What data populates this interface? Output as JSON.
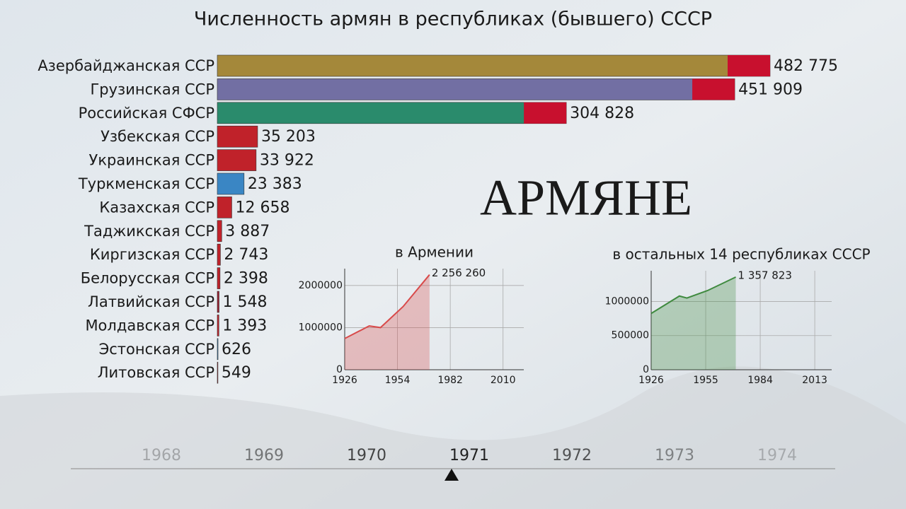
{
  "heading": "АРМЯНЕ",
  "timeline": {
    "years": [
      1968,
      1969,
      1970,
      1971,
      1972,
      1973,
      1974
    ]
  },
  "chart_data": [
    {
      "type": "bar",
      "orientation": "horizontal",
      "title": "Численность армян в республиках (бывшего) СССР",
      "categories": [
        "Азербайджанская ССР",
        "Грузинская ССР",
        "Российская СФСР",
        "Узбекская ССР",
        "Украинская ССР",
        "Туркменская ССР",
        "Казахская ССР",
        "Таджикская ССР",
        "Киргизская ССР",
        "Белорусская ССР",
        "Латвийская ССР",
        "Молдавская ССР",
        "Эстонская ССР",
        "Литовская ССР"
      ],
      "values": [
        482775,
        451909,
        304828,
        35203,
        33922,
        23383,
        12658,
        3887,
        2743,
        2398,
        1548,
        1393,
        626,
        549
      ],
      "value_labels": [
        "482 775",
        "451 909",
        "304 828",
        "35 203",
        "33 922",
        "23 383",
        "12 658",
        "3 887",
        "2 743",
        "2 398",
        "1 548",
        "1 393",
        "626",
        "549"
      ],
      "colors": [
        "#a4883a",
        "#726fa3",
        "#2a8b6c",
        "#c0222a",
        "#c0222a",
        "#3a86c4",
        "#c0222a",
        "#c0222a",
        "#c0222a",
        "#c0222a",
        "#9a2030",
        "#c0222a",
        "#3a86c4",
        "#c0222a"
      ]
    },
    {
      "type": "line",
      "title": "в Армении",
      "color": "#d84a4a",
      "x": [
        1926,
        1939,
        1945,
        1957,
        1971
      ],
      "values": [
        740000,
        1040000,
        1000000,
        1500000,
        2256260
      ],
      "value_labels": [
        null,
        null,
        null,
        null,
        "2 256 260"
      ],
      "xlim": [
        1926,
        2021
      ],
      "xticks": [
        1926,
        1954,
        1982,
        2010
      ],
      "ylim": [
        0,
        2400000
      ],
      "yticks": [
        0,
        1000000,
        2000000
      ],
      "grid": true
    },
    {
      "type": "line",
      "title": "в остальных 14 республиках СССР",
      "color": "#3f8a3f",
      "x": [
        1926,
        1941,
        1945,
        1956,
        1971
      ],
      "values": [
        825000,
        1080000,
        1050000,
        1160000,
        1357823
      ],
      "value_labels": [
        null,
        null,
        null,
        null,
        "1 357 823"
      ],
      "xlim": [
        1926,
        2022
      ],
      "xticks": [
        1926,
        1955,
        1984,
        2013
      ],
      "ylim": [
        0,
        1450000
      ],
      "yticks": [
        0,
        500000,
        1000000
      ],
      "grid": true
    }
  ]
}
